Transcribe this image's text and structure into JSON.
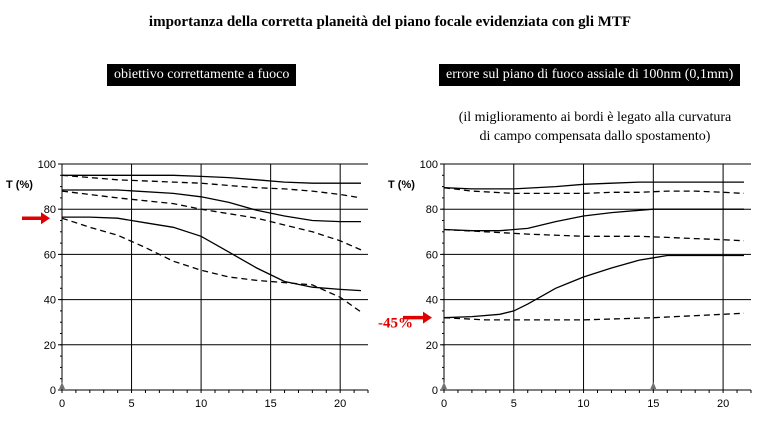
{
  "title": "importanza della corretta planeità del piano focale evidenziata con gli MTF",
  "colors": {
    "arrow": "#e00000",
    "marker": "#707070",
    "grid": "#000000",
    "background": "#ffffff"
  },
  "chart_data": [
    {
      "type": "line",
      "label": "obiettivo correttamente a fuoco",
      "ylabel": "T (%)",
      "xlabel": "",
      "xlim": [
        0,
        22
      ],
      "ylim": [
        0,
        100
      ],
      "xticks": [
        0,
        5,
        10,
        15,
        20
      ],
      "yticks": [
        0,
        20,
        40,
        60,
        80,
        100
      ],
      "grid": true,
      "marker_x": [
        0
      ],
      "arrow_y": 76,
      "annotation": "",
      "series": [
        {
          "style": "solid",
          "x": [
            0,
            4,
            8,
            10,
            12,
            14,
            16,
            18,
            20,
            21.5
          ],
          "y": [
            95,
            95,
            95,
            94.5,
            94,
            93,
            92,
            91.5,
            91.5,
            91.5
          ]
        },
        {
          "style": "dashed",
          "x": [
            0,
            4,
            8,
            10,
            12,
            14,
            16,
            18,
            20,
            21.5
          ],
          "y": [
            95,
            93,
            92,
            91.5,
            90.5,
            89.5,
            89,
            88,
            86.5,
            85
          ]
        },
        {
          "style": "solid",
          "x": [
            0,
            4,
            8,
            10,
            12,
            14,
            16,
            18,
            20,
            21.5
          ],
          "y": [
            88.5,
            88.5,
            87,
            85.5,
            83,
            79.5,
            77,
            75,
            74.5,
            74.5
          ]
        },
        {
          "style": "dashed",
          "x": [
            0,
            4,
            8,
            10,
            12,
            14,
            16,
            18,
            20,
            21.5
          ],
          "y": [
            88,
            85,
            82.5,
            80,
            78,
            76,
            73,
            70,
            66,
            62
          ]
        },
        {
          "style": "solid",
          "x": [
            0,
            2,
            4,
            6,
            8,
            10,
            12,
            14,
            16,
            18,
            20,
            21.5
          ],
          "y": [
            76.5,
            76.5,
            76,
            74,
            72,
            68,
            61,
            54,
            48,
            45.5,
            44.5,
            44
          ]
        },
        {
          "style": "dashed",
          "x": [
            0,
            2,
            4,
            6,
            8,
            10,
            12,
            14,
            16,
            18,
            20,
            21.5
          ],
          "y": [
            76,
            72,
            68.5,
            63,
            57,
            53,
            50,
            48.5,
            47.5,
            46.5,
            41,
            34.5
          ]
        }
      ]
    },
    {
      "type": "line",
      "label": "errore sul piano di fuoco assiale di 100nm (0,1mm)",
      "note_line1": "(il miglioramento ai bordi è legato alla curvatura",
      "note_line2": "di campo compensata dallo spostamento)",
      "ylabel": "T (%)",
      "xlabel": "",
      "xlim": [
        0,
        22
      ],
      "ylim": [
        0,
        100
      ],
      "xticks": [
        0,
        5,
        10,
        15,
        20
      ],
      "yticks": [
        0,
        20,
        40,
        60,
        80,
        100
      ],
      "grid": true,
      "marker_x": [
        0,
        15
      ],
      "arrow_y": 32,
      "annotation": "-45%",
      "series": [
        {
          "style": "solid",
          "x": [
            0,
            2,
            5,
            8,
            10,
            12,
            14,
            15,
            17,
            20,
            21.5
          ],
          "y": [
            89.5,
            89,
            89,
            90,
            91,
            91.5,
            92,
            92,
            92,
            92,
            92
          ]
        },
        {
          "style": "dashed",
          "x": [
            0,
            2,
            5,
            8,
            10,
            12,
            14,
            16,
            18,
            20,
            21.5
          ],
          "y": [
            89.5,
            88,
            87,
            87,
            87,
            87.5,
            87.5,
            88,
            88,
            87.5,
            87
          ]
        },
        {
          "style": "solid",
          "x": [
            0,
            2,
            4,
            6,
            8,
            10,
            12,
            14,
            15,
            17,
            20,
            21.5
          ],
          "y": [
            71,
            70.5,
            70.5,
            71.5,
            74.5,
            77,
            78.5,
            79.5,
            80,
            80,
            80,
            80
          ]
        },
        {
          "style": "dashed",
          "x": [
            0,
            3,
            6,
            10,
            14,
            16,
            18,
            20,
            21.5
          ],
          "y": [
            71,
            70,
            69,
            68,
            68,
            67.5,
            67,
            66.5,
            66
          ]
        },
        {
          "style": "solid",
          "x": [
            0,
            2,
            4,
            5,
            6,
            7,
            8,
            9,
            10,
            12,
            14,
            15,
            16,
            18,
            20,
            21.5
          ],
          "y": [
            32,
            32.5,
            33.5,
            35,
            38,
            41.5,
            45,
            47.5,
            50,
            54,
            57.5,
            58.5,
            59.5,
            59.5,
            59.5,
            59.5
          ]
        },
        {
          "style": "dashed",
          "x": [
            0,
            3,
            5,
            10,
            15,
            20,
            21.5
          ],
          "y": [
            32,
            31,
            31,
            31,
            32,
            33.5,
            34
          ]
        }
      ]
    }
  ]
}
